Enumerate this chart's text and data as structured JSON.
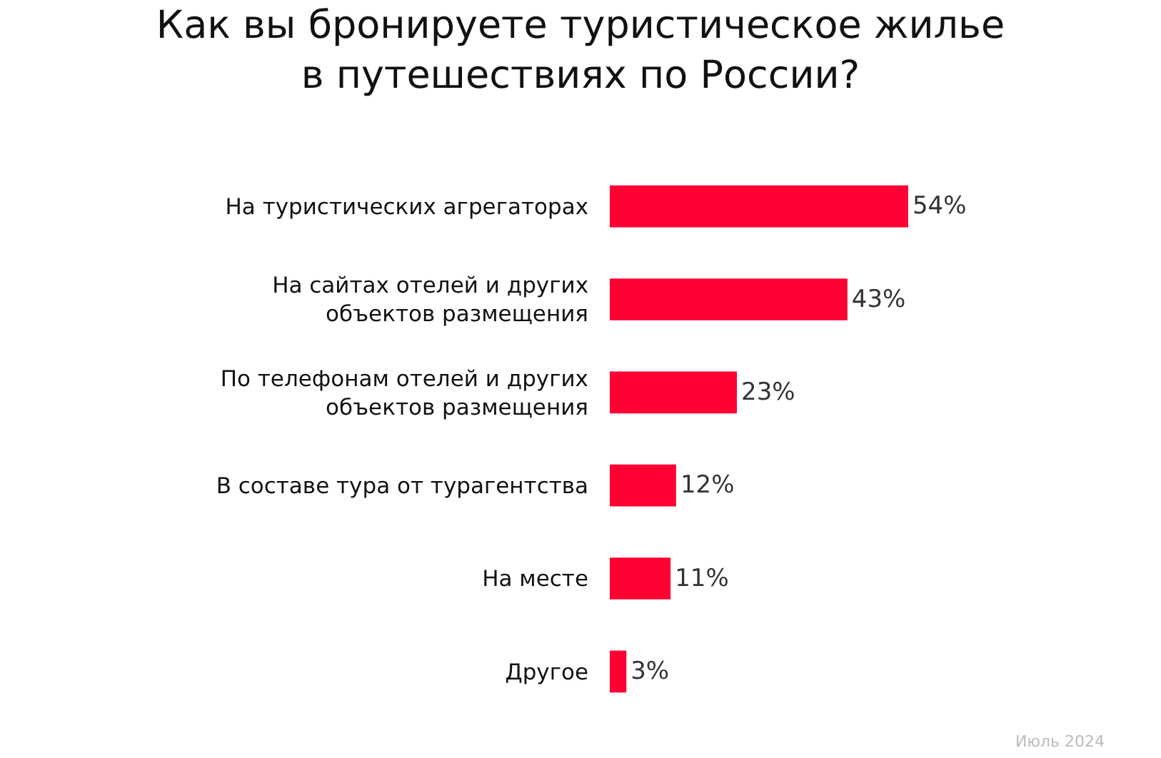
{
  "chart_data": {
    "type": "bar",
    "orientation": "horizontal",
    "title": "Как вы бронируете туристическое жилье\nв путешествиях по России?",
    "categories": [
      "На туристических агрегаторах",
      "На сайтах отелей и других\nобъектов размещения",
      "По телефонам отелей и других\nобъектов размещения",
      "В составе тура от турагентства",
      "На месте",
      "Другое"
    ],
    "values": [
      54,
      43,
      23,
      12,
      11,
      3
    ],
    "value_labels": [
      "54%",
      "43%",
      "23%",
      "12%",
      "11%",
      "3%"
    ],
    "color": "#ff0033",
    "annotations": [
      "Июль 2024"
    ]
  }
}
